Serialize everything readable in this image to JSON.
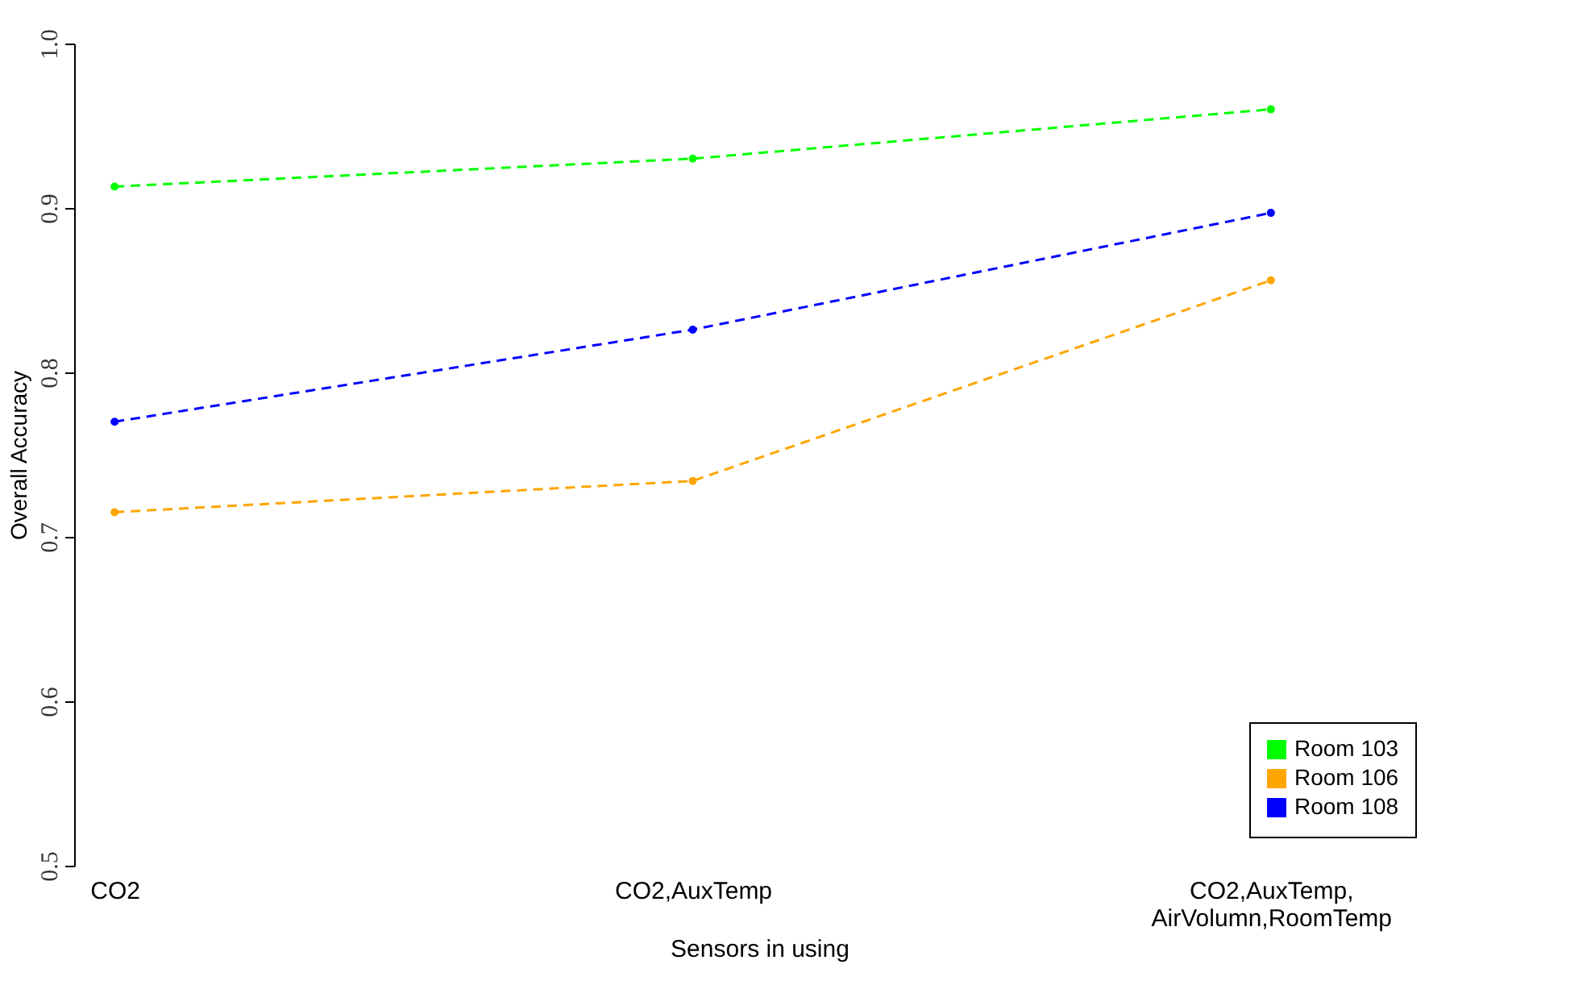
{
  "chart_data": {
    "type": "line",
    "xlabel": "Sensors in using",
    "ylabel": "Overall Accuracy",
    "categories": [
      "CO2",
      "CO2,AuxTemp",
      "CO2,AuxTemp,\nAirVolumn,RoomTemp"
    ],
    "series": [
      {
        "name": "Room 103",
        "color": "#00ff00",
        "values": [
          0.913,
          0.93,
          0.96
        ]
      },
      {
        "name": "Room 106",
        "color": "#ffa500",
        "values": [
          0.715,
          0.734,
          0.856
        ]
      },
      {
        "name": "Room 108",
        "color": "#0000ff",
        "values": [
          0.77,
          0.826,
          0.897
        ]
      }
    ],
    "ylim": [
      0.5,
      1.0
    ],
    "yticks": [
      0.5,
      0.6,
      0.7,
      0.8,
      0.9,
      {
        "value": 1.0,
        "label": "1.0"
      }
    ],
    "grid": false,
    "legend": "bottom right",
    "marker": "circle",
    "line_style": "dashed"
  }
}
